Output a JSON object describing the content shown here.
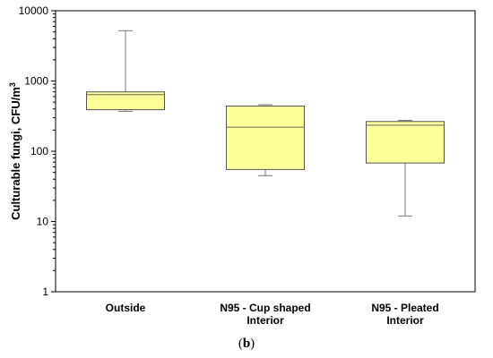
{
  "chart_data": {
    "type": "box",
    "scale": "log",
    "ylim": [
      1,
      10000
    ],
    "y_ticks": [
      "1",
      "10",
      "100",
      "1000",
      "10000"
    ],
    "ylabel": "Culturable fungi, CFU/m",
    "ylabel_superscript": "3",
    "grid": false,
    "categories": [
      {
        "lines": [
          "Outside"
        ]
      },
      {
        "lines": [
          "N95 - Cup shaped",
          "Interior"
        ]
      },
      {
        "lines": [
          "N95 - Pleated",
          "Interior"
        ]
      }
    ],
    "boxes": [
      {
        "whisker_low": 370,
        "q1": 390,
        "median": 640,
        "q3": 700,
        "whisker_high": 5200
      },
      {
        "whisker_low": 45,
        "q1": 55,
        "median": 220,
        "q3": 440,
        "whisker_high": 460
      },
      {
        "whisker_low": 12,
        "q1": 68,
        "median": 235,
        "q3": 265,
        "whisker_high": 275
      }
    ],
    "box_color": "#ffff99",
    "panel_label_open": "(",
    "panel_label_letter": "b",
    "panel_label_close": ")"
  }
}
